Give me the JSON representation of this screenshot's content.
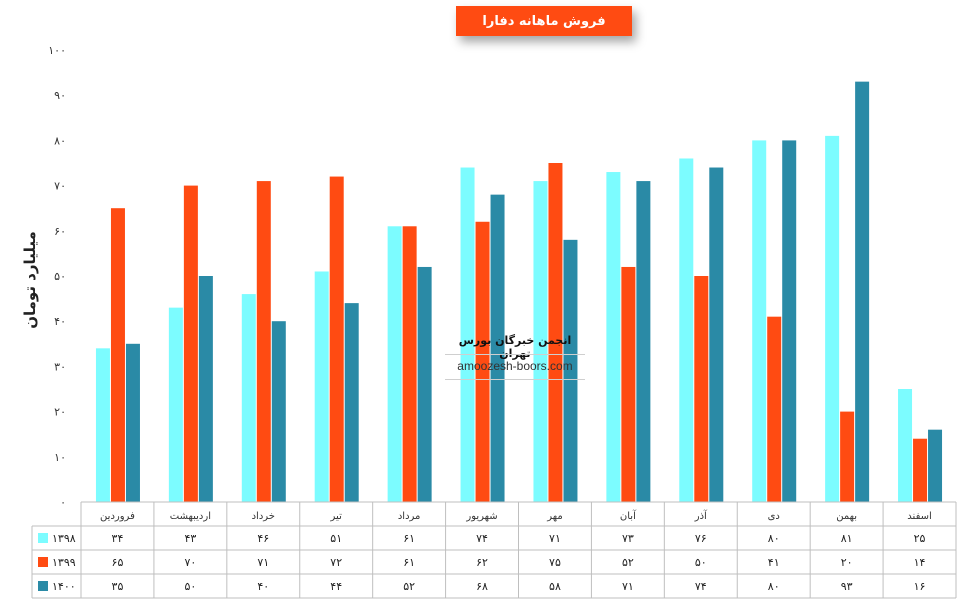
{
  "chart_data": {
    "type": "bar",
    "title": "فروش ماهانه دفارا",
    "ylabel": "میلیارد تومان",
    "ylim": [
      0,
      100
    ],
    "yticks": [
      "۰",
      "۱۰",
      "۲۰",
      "۳۰",
      "۴۰",
      "۵۰",
      "۶۰",
      "۷۰",
      "۸۰",
      "۹۰",
      "۱۰۰"
    ],
    "categories": [
      "فروردین",
      "اردیبهشت",
      "خرداد",
      "تیر",
      "مرداد",
      "شهریور",
      "مهر",
      "آبان",
      "آذر",
      "دی",
      "بهمن",
      "اسفند"
    ],
    "series": [
      {
        "name": "۱۳۹۸",
        "color": "#7cfcff",
        "values": [
          34,
          43,
          46,
          51,
          61,
          74,
          71,
          73,
          76,
          80,
          81,
          25
        ],
        "labels": [
          "۳۴",
          "۴۳",
          "۴۶",
          "۵۱",
          "۶۱",
          "۷۴",
          "۷۱",
          "۷۳",
          "۷۶",
          "۸۰",
          "۸۱",
          "۲۵"
        ]
      },
      {
        "name": "۱۳۹۹",
        "color": "#ff4b12",
        "values": [
          65,
          70,
          71,
          72,
          61,
          62,
          75,
          52,
          50,
          41,
          20,
          14
        ],
        "labels": [
          "۶۵",
          "۷۰",
          "۷۱",
          "۷۲",
          "۶۱",
          "۶۲",
          "۷۵",
          "۵۲",
          "۵۰",
          "۴۱",
          "۲۰",
          "۱۴"
        ]
      },
      {
        "name": "۱۴۰۰",
        "color": "#2a8aa6",
        "values": [
          35,
          50,
          40,
          44,
          52,
          68,
          58,
          71,
          74,
          80,
          93,
          16
        ],
        "labels": [
          "۳۵",
          "۵۰",
          "۴۰",
          "۴۴",
          "۵۲",
          "۶۸",
          "۵۸",
          "۷۱",
          "۷۴",
          "۸۰",
          "۹۳",
          "۱۶"
        ]
      }
    ],
    "grid": false,
    "legend": "data-table-left"
  },
  "watermark": {
    "line1": "انجمن خبرگان بورس تهران",
    "line2": "amoozesh-boors.com"
  }
}
